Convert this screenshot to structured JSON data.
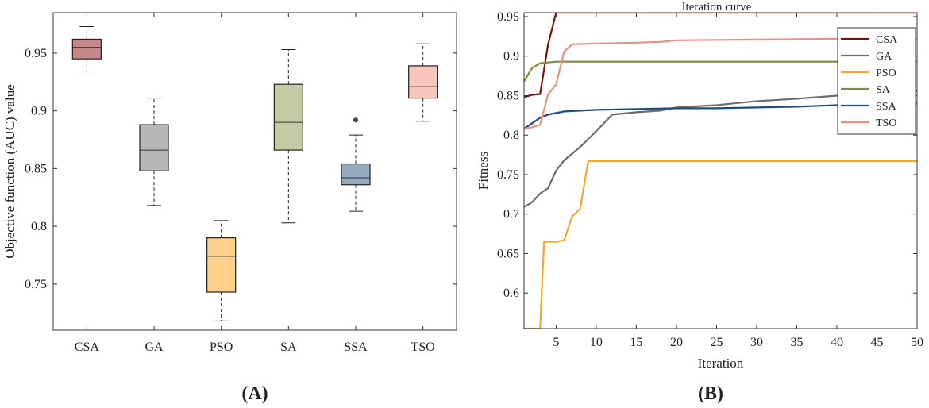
{
  "chart_data": [
    {
      "type": "box",
      "panel_label": "(A)",
      "title": "",
      "xlabel": "",
      "ylabel": "Objective function (AUC) value",
      "ylim": [
        0.71,
        0.985
      ],
      "yticks": [
        0.75,
        0.8,
        0.85,
        0.9,
        0.95
      ],
      "ytick_labels": [
        "0.75",
        "0.8",
        "0.85",
        "0.9",
        "0.95"
      ],
      "categories": [
        "CSA",
        "GA",
        "PSO",
        "SA",
        "SSA",
        "TSO"
      ],
      "boxes": [
        {
          "name": "CSA",
          "whisker_low": 0.931,
          "q1": 0.945,
          "median": 0.955,
          "q3": 0.962,
          "whisker_high": 0.973,
          "outliers": [],
          "color": "#c48a8a"
        },
        {
          "name": "GA",
          "whisker_low": 0.818,
          "q1": 0.848,
          "median": 0.866,
          "q3": 0.888,
          "whisker_high": 0.911,
          "outliers": [],
          "color": "#b7b7b9"
        },
        {
          "name": "PSO",
          "whisker_low": 0.718,
          "q1": 0.743,
          "median": 0.774,
          "q3": 0.79,
          "whisker_high": 0.805,
          "outliers": [],
          "color": "#ffd08a"
        },
        {
          "name": "SA",
          "whisker_low": 0.803,
          "q1": 0.866,
          "median": 0.89,
          "q3": 0.923,
          "whisker_high": 0.953,
          "outliers": [],
          "color": "#c3cba2"
        },
        {
          "name": "SSA",
          "whisker_low": 0.813,
          "q1": 0.836,
          "median": 0.842,
          "q3": 0.854,
          "whisker_high": 0.879,
          "outliers": [
            0.892
          ],
          "color": "#93aac0"
        },
        {
          "name": "TSO",
          "whisker_low": 0.891,
          "q1": 0.911,
          "median": 0.921,
          "q3": 0.939,
          "whisker_high": 0.958,
          "outliers": [],
          "color": "#f9c6bd"
        }
      ]
    },
    {
      "type": "line",
      "panel_label": "(B)",
      "title": "Iteration curve",
      "xlabel": "Iteration",
      "ylabel": "Fitness",
      "xlim": [
        1,
        50
      ],
      "ylim": [
        0.555,
        0.955
      ],
      "xticks": [
        5,
        10,
        15,
        20,
        25,
        30,
        35,
        40,
        45,
        50
      ],
      "xtick_labels": [
        "5",
        "10",
        "15",
        "20",
        "25",
        "30",
        "35",
        "40",
        "45",
        "50"
      ],
      "yticks": [
        0.6,
        0.65,
        0.7,
        0.75,
        0.8,
        0.85,
        0.9,
        0.95
      ],
      "ytick_labels": [
        "0.6",
        "0.65",
        "0.7",
        "0.75",
        "0.8",
        "0.85",
        "0.9",
        "0.95"
      ],
      "legend_position": "top-right",
      "series": [
        {
          "name": "CSA",
          "color": "#7a1010",
          "x": [
            1,
            2,
            3,
            4,
            5,
            6,
            50
          ],
          "y": [
            0.848,
            0.851,
            0.852,
            0.915,
            0.955,
            0.955,
            0.955
          ]
        },
        {
          "name": "GA",
          "color": "#6e6e6e",
          "x": [
            1,
            2,
            3,
            4,
            5,
            6,
            8,
            10,
            12,
            15,
            18,
            20,
            25,
            28,
            30,
            35,
            40,
            45,
            50
          ],
          "y": [
            0.709,
            0.715,
            0.726,
            0.733,
            0.755,
            0.768,
            0.785,
            0.805,
            0.826,
            0.829,
            0.831,
            0.835,
            0.838,
            0.841,
            0.843,
            0.846,
            0.85,
            0.854,
            0.856
          ]
        },
        {
          "name": "PSO",
          "color": "#f5a82a",
          "x": [
            1,
            2,
            3,
            3.5,
            4,
            5,
            6,
            7,
            8,
            9,
            50
          ],
          "y": [
            0.555,
            0.555,
            0.555,
            0.665,
            0.665,
            0.665,
            0.667,
            0.697,
            0.707,
            0.767,
            0.767
          ]
        },
        {
          "name": "SA",
          "color": "#7f8c3a",
          "x": [
            1,
            2,
            3,
            4,
            5,
            50
          ],
          "y": [
            0.868,
            0.885,
            0.891,
            0.892,
            0.893,
            0.893
          ]
        },
        {
          "name": "SSA",
          "color": "#1d4e7a",
          "x": [
            1,
            2,
            3,
            4,
            6,
            8,
            10,
            15,
            20,
            25,
            30,
            35,
            40,
            50
          ],
          "y": [
            0.808,
            0.815,
            0.822,
            0.826,
            0.83,
            0.831,
            0.832,
            0.833,
            0.834,
            0.834,
            0.835,
            0.836,
            0.838,
            0.84
          ]
        },
        {
          "name": "TSO",
          "color": "#f28d80",
          "x": [
            1,
            2,
            3,
            4,
            5,
            6,
            7,
            10,
            15,
            18,
            20,
            30,
            40,
            50
          ],
          "y": [
            0.808,
            0.81,
            0.813,
            0.852,
            0.864,
            0.906,
            0.915,
            0.916,
            0.917,
            0.918,
            0.92,
            0.921,
            0.922,
            0.922
          ]
        }
      ]
    }
  ]
}
